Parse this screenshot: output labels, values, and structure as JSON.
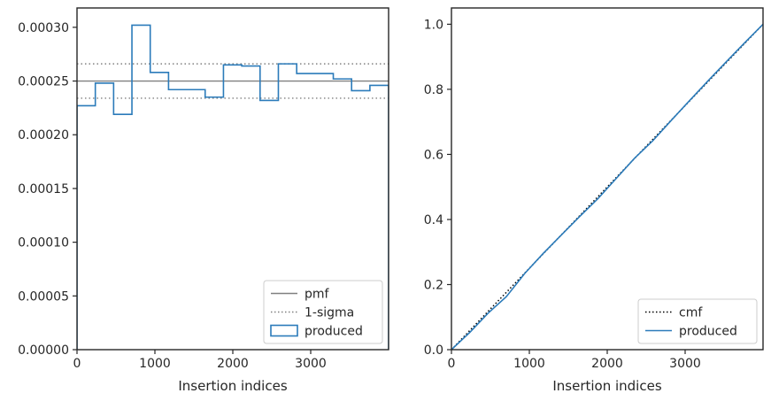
{
  "chart_data": [
    {
      "type": "line",
      "xlabel": "Insertion indices",
      "ylabel": "",
      "xlim": [
        0,
        4000
      ],
      "ylim": [
        0,
        0.000318
      ],
      "xticks": [
        0,
        1000,
        2000,
        3000
      ],
      "xtick_labels": [
        "0",
        "1000",
        "2000",
        "3000"
      ],
      "yticks": [
        0,
        5e-05,
        0.0001,
        0.00015,
        0.0002,
        0.00025,
        0.0003
      ],
      "ytick_labels": [
        "0.00000",
        "0.00005",
        "0.00010",
        "0.00015",
        "0.00020",
        "0.00025",
        "0.00030"
      ],
      "grid": false,
      "legend_position": "lower-right",
      "legend": [
        "pmf",
        "1-sigma",
        "produced"
      ],
      "reference_lines": [
        {
          "name": "pmf",
          "y": 0.00025,
          "style": "solid",
          "color": "#808080"
        },
        {
          "name": "1-sigma",
          "y": 0.000266,
          "style": "dotted",
          "color": "#808080"
        },
        {
          "name": "1-sigma",
          "y": 0.000234,
          "style": "dotted",
          "color": "#808080"
        }
      ],
      "series": [
        {
          "name": "produced",
          "kind": "step-histogram",
          "color": "#2b7bba",
          "bin_edges": [
            0,
            235,
            470,
            705,
            940,
            1175,
            1410,
            1645,
            1880,
            2115,
            2350,
            2585,
            2820,
            3055,
            3290,
            3525,
            3760,
            4000
          ],
          "values": [
            0.000227,
            0.000248,
            0.000219,
            0.000302,
            0.000258,
            0.000242,
            0.000242,
            0.000235,
            0.000265,
            0.000264,
            0.000232,
            0.000266,
            0.000257,
            0.000257,
            0.000252,
            0.000241,
            0.000246
          ]
        }
      ]
    },
    {
      "type": "line",
      "xlabel": "Insertion indices",
      "ylabel": "",
      "xlim": [
        0,
        4000
      ],
      "ylim": [
        0,
        1.05
      ],
      "xticks": [
        0,
        1000,
        2000,
        3000
      ],
      "xtick_labels": [
        "0",
        "1000",
        "2000",
        "3000"
      ],
      "yticks": [
        0,
        0.2,
        0.4,
        0.6,
        0.8,
        1.0
      ],
      "ytick_labels": [
        "0.0",
        "0.2",
        "0.4",
        "0.6",
        "0.8",
        "1.0"
      ],
      "grid": false,
      "legend_position": "lower-right",
      "legend": [
        "cmf",
        "produced"
      ],
      "series": [
        {
          "name": "cmf",
          "style": "dotted",
          "color": "#000000",
          "x": [
            0,
            4000
          ],
          "y": [
            0,
            1.0
          ]
        },
        {
          "name": "produced",
          "style": "solid",
          "color": "#2b7bba",
          "x": [
            0,
            235,
            470,
            705,
            940,
            1175,
            1410,
            1645,
            1880,
            2115,
            2350,
            2585,
            2820,
            3055,
            3290,
            3525,
            3760,
            4000
          ],
          "y": [
            0,
            0.053,
            0.112,
            0.163,
            0.234,
            0.295,
            0.352,
            0.409,
            0.464,
            0.526,
            0.588,
            0.642,
            0.704,
            0.765,
            0.825,
            0.884,
            0.942,
            1.0
          ]
        }
      ]
    }
  ]
}
